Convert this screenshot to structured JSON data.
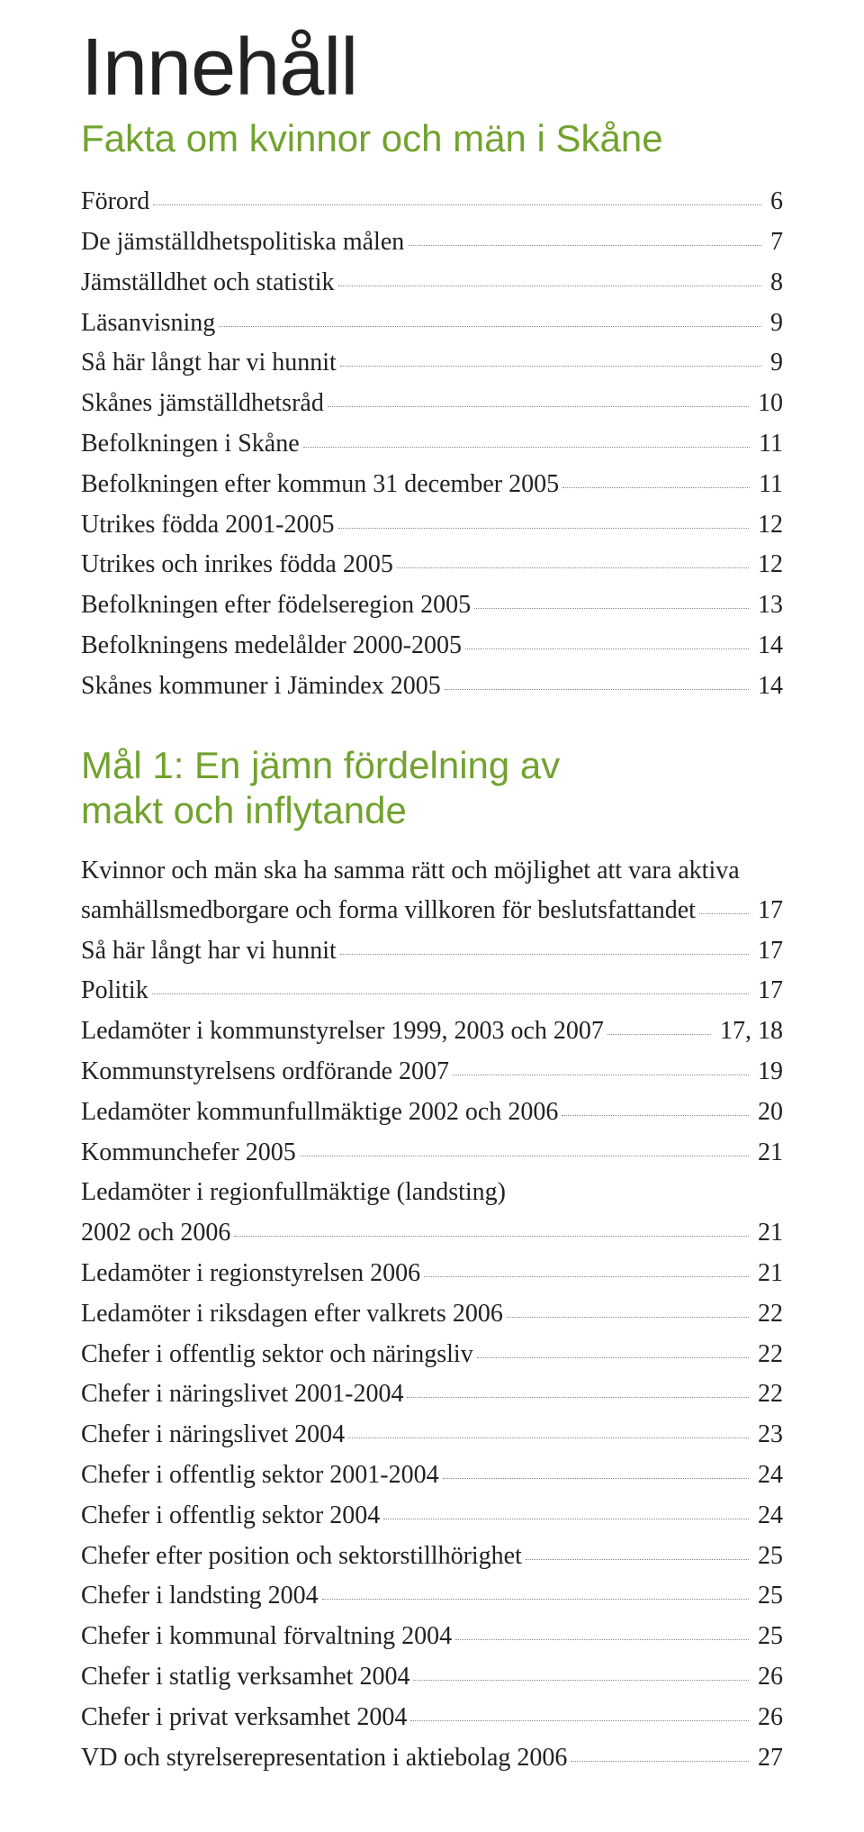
{
  "colors": {
    "heading": "#72a22f",
    "text": "#222222",
    "leader": "#888888",
    "background": "#ffffff"
  },
  "typography": {
    "title_family": "Gill Sans, Segoe UI, Arial, sans-serif",
    "body_family": "Georgia, Times New Roman, serif",
    "title_size_pt": 68,
    "heading_size_pt": 32,
    "body_size_pt": 21
  },
  "title": "Innehåll",
  "section1": {
    "heading": "Fakta om kvinnor och män i Skåne",
    "entries": [
      {
        "label": "Förord",
        "page": "6"
      },
      {
        "label": "De jämställdhetspolitiska målen",
        "page": "7"
      },
      {
        "label": "Jämställdhet och statistik",
        "page": "8"
      },
      {
        "label": "Läsanvisning",
        "page": "9"
      },
      {
        "label": "Så här långt har vi hunnit",
        "page": "9"
      },
      {
        "label": "Skånes jämställdhetsråd",
        "page": "10"
      },
      {
        "label": "Befolkningen i Skåne",
        "page": "11"
      },
      {
        "label": "Befolkningen efter kommun 31 december 2005",
        "page": "11"
      },
      {
        "label": "Utrikes födda 2001-2005",
        "page": "12"
      },
      {
        "label": "Utrikes och inrikes födda 2005",
        "page": "12"
      },
      {
        "label": "Befolkningen efter födelseregion 2005",
        "page": "13"
      },
      {
        "label": "Befolkningens medelålder 2000-2005",
        "page": "14"
      },
      {
        "label": "Skånes kommuner i Jämindex 2005",
        "page": "14"
      }
    ]
  },
  "goal1": {
    "heading_line1": "Mål 1: En jämn fördelning av",
    "heading_line2": "makt och inflytande",
    "intro_line1": "Kvinnor och män ska ha samma rätt och möjlighet att vara aktiva",
    "intro_entry": {
      "label": "samhällsmedborgare och forma villkoren för beslutsfattandet",
      "page": "17"
    },
    "entries_a": [
      {
        "label": "Så här långt har vi hunnit",
        "page": "17"
      },
      {
        "label": "Politik",
        "page": "17"
      },
      {
        "label": "Ledamöter i kommunstyrelser 1999, 2003 och 2007",
        "page": "17, 18"
      },
      {
        "label": "Kommunstyrelsens ordförande 2007",
        "page": "19"
      },
      {
        "label": "Ledamöter kommunfullmäktige 2002 och 2006",
        "page": "20"
      },
      {
        "label": "Kommunchefer 2005",
        "page": "21"
      }
    ],
    "split_entry": {
      "line1": "Ledamöter i regionfullmäktige (landsting)",
      "label": "2002 och 2006",
      "page": "21"
    },
    "entries_b": [
      {
        "label": "Ledamöter i regionstyrelsen 2006",
        "page": "21"
      },
      {
        "label": "Ledamöter i riksdagen efter valkrets 2006",
        "page": "22"
      },
      {
        "label": "Chefer i offentlig sektor och näringsliv",
        "page": "22"
      },
      {
        "label": "Chefer i näringslivet 2001-2004",
        "page": "22"
      },
      {
        "label": "Chefer i näringslivet 2004",
        "page": "23"
      },
      {
        "label": "Chefer i offentlig sektor 2001-2004",
        "page": "24"
      },
      {
        "label": "Chefer i offentlig sektor 2004",
        "page": "24"
      },
      {
        "label": "Chefer efter position och sektorstillhörighet",
        "page": "25"
      },
      {
        "label": "Chefer i landsting 2004",
        "page": "25"
      },
      {
        "label": "Chefer i kommunal förvaltning 2004",
        "page": "25"
      },
      {
        "label": "Chefer i statlig verksamhet 2004",
        "page": "26"
      },
      {
        "label": "Chefer i privat verksamhet 2004",
        "page": "26"
      },
      {
        "label": "VD och styrelserepresentation i aktiebolag 2006",
        "page": "27"
      }
    ]
  }
}
